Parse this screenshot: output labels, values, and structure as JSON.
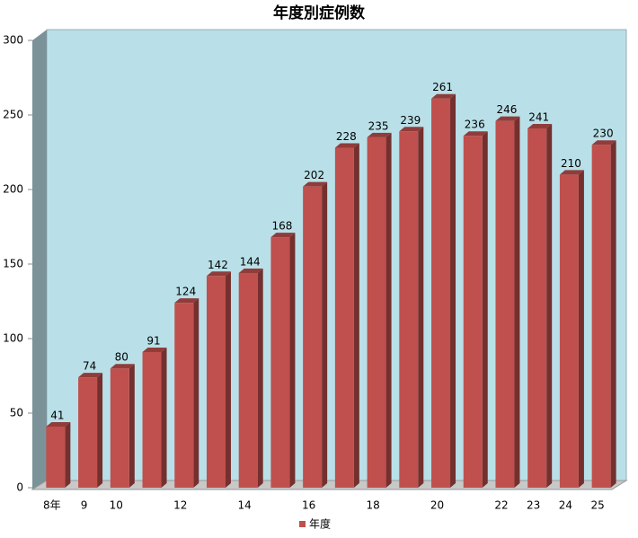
{
  "chart_data": {
    "type": "bar3d",
    "title": "年度別症例数",
    "categories": [
      "8年",
      "9",
      "10",
      null,
      "12",
      null,
      "14",
      null,
      "16",
      null,
      "18",
      null,
      "20",
      null,
      "22",
      "23",
      "24",
      "25"
    ],
    "series": [
      {
        "name": "年度",
        "color": "#c0504d",
        "values": [
          41,
          74,
          80,
          91,
          124,
          142,
          144,
          168,
          202,
          228,
          235,
          239,
          261,
          236,
          246,
          241,
          210,
          230
        ]
      }
    ],
    "ylim": [
      0,
      300
    ],
    "yticks": [
      0,
      50,
      100,
      150,
      200,
      250,
      300
    ],
    "grid": false,
    "legend": "bottom"
  }
}
